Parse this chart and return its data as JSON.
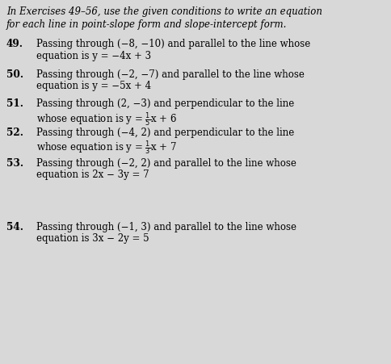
{
  "background_color": "#d8d8d8",
  "text_color": "#000000",
  "figsize": [
    4.84,
    4.51
  ],
  "dpi": 100,
  "header_line1": "In Exercises 49–56, use the given conditions to write an equation",
  "header_line2": "for each line in point-slope form and slope-intercept form.",
  "problems": [
    {
      "number": "49.",
      "line1": "Passing through (−8, −10) and parallel to the line whose",
      "line2": "equation is y = −4x + 3",
      "frac": null
    },
    {
      "number": "50.",
      "line1": "Passing through (−2, −7) and parallel to the line whose",
      "line2": "equation is y = −5x + 4",
      "frac": null
    },
    {
      "number": "51.",
      "line1": "Passing through (2, −3) and perpendicular to the line",
      "line2_prefix": "whose equation is y = ",
      "line2_suffix": "x + 6",
      "frac": "1/5"
    },
    {
      "number": "52.",
      "line1": "Passing through (−4, 2) and perpendicular to the line",
      "line2_prefix": "whose equation is y = ",
      "line2_suffix": "x + 7",
      "frac": "1/3"
    },
    {
      "number": "53.",
      "line1": "Passing through (−2, 2) and parallel to the line whose",
      "line2": "equation is 2x − 3y = 7",
      "frac": null
    },
    {
      "number": "54.",
      "line1": "Passing through (−1, 3) and parallel to the line whose",
      "line2": "equation is 3x − 2y = 5",
      "frac": null
    }
  ]
}
